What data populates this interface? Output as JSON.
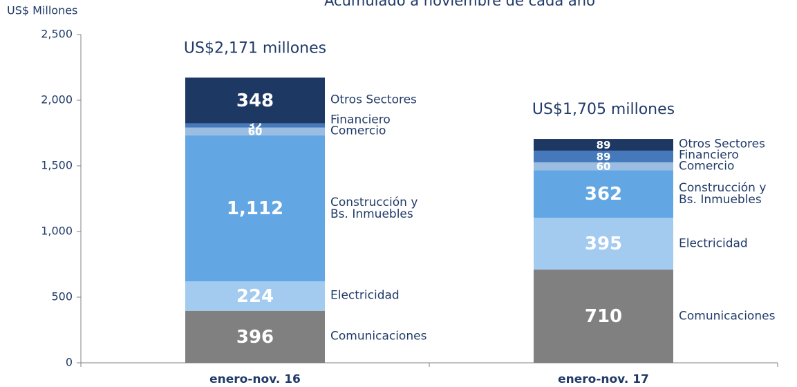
{
  "chart_data": {
    "type": "stacked-bar",
    "title": "Acumulado a noviembre de cada año",
    "y_label": "US$ Millones",
    "categories": [
      "enero-nov. 16",
      "enero-nov. 17"
    ],
    "annotations": [
      "US$2,171 millones",
      "US$1,705 millones"
    ],
    "series": [
      {
        "name": "Comunicaciones",
        "color": "#808080",
        "values": [
          396,
          710
        ]
      },
      {
        "name": "Electricidad",
        "color": "#a3caef",
        "values": [
          224,
          395
        ]
      },
      {
        "name": "Construcción y Bs. Inmuebles",
        "color": "#62a7e4",
        "values": [
          1112,
          362
        ],
        "value_labels": [
          "1,112",
          "362"
        ]
      },
      {
        "name": "Comercio",
        "color": "#9bbde2",
        "values": [
          60,
          60
        ]
      },
      {
        "name": "Financiero",
        "color": "#4579bb",
        "values": [
          32,
          89
        ]
      },
      {
        "name": "Otros Sectores",
        "color": "#1e3864",
        "values": [
          348,
          89
        ]
      }
    ],
    "ylim": [
      0,
      2500
    ],
    "yticks": [
      0,
      500,
      {
        "value": 1000,
        "label": "1,000"
      },
      {
        "value": 1500,
        "label": "1,500"
      },
      {
        "value": 2000,
        "label": "2,000"
      },
      {
        "value": 2500,
        "label": "2,500"
      }
    ],
    "grid": false
  }
}
